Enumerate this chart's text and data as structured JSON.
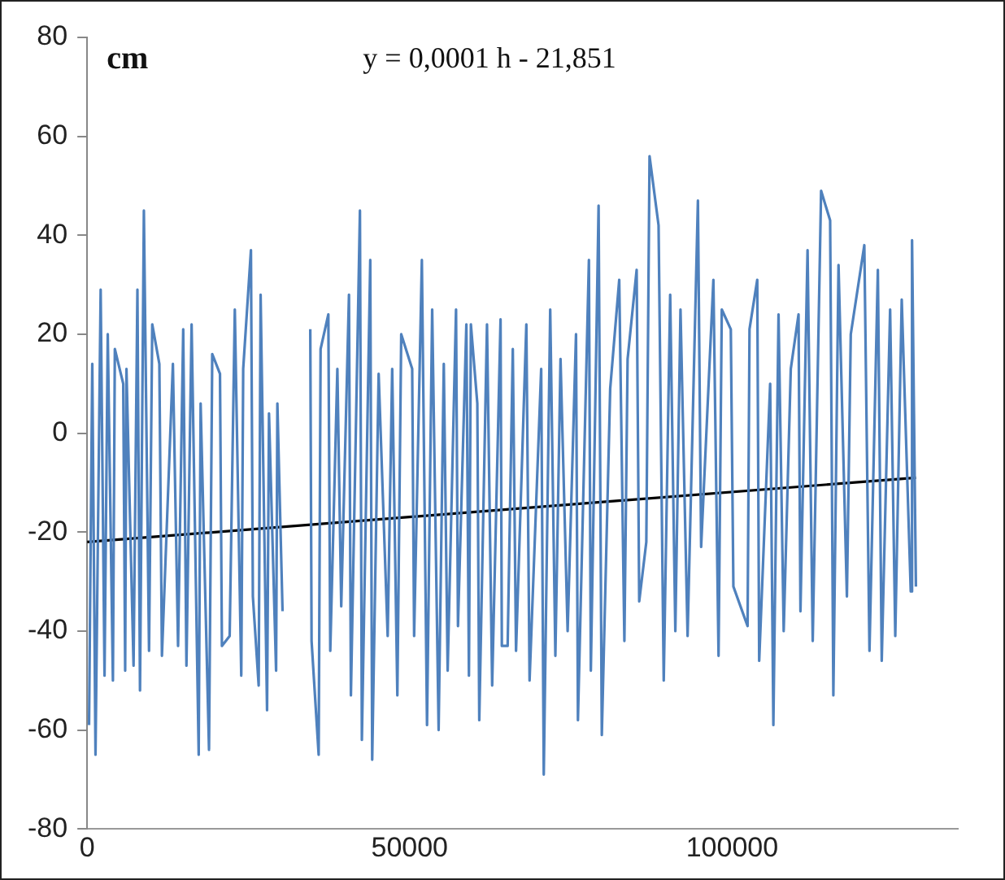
{
  "chart_data": {
    "type": "line",
    "ylabel": "cm",
    "annotations": [
      "y = 0,0001 h - 21,851"
    ],
    "xlim": [
      0,
      135000
    ],
    "xticks": [
      0,
      50000,
      100000
    ],
    "ylim": [
      -80,
      80
    ],
    "yticks": [
      -80,
      -60,
      -40,
      -20,
      0,
      20,
      40,
      60,
      80
    ],
    "legend": false,
    "marker": "none",
    "series": [
      {
        "color": "#4f81bd",
        "x": [
          300,
          800,
          1300,
          2100,
          2700,
          3200,
          4000,
          4300,
          5600,
          5900,
          6100,
          7200,
          7800,
          8200,
          8800,
          9600,
          10100,
          11200,
          11600,
          13300,
          14100,
          14900,
          15400,
          16200,
          17300,
          17600,
          18900,
          19400,
          20600,
          20900,
          22100,
          22900,
          23900,
          24200,
          25400,
          25700,
          26600,
          26900,
          27900,
          28200,
          29300,
          29500,
          30300,
          32000,
          34600,
          34800,
          35900,
          36200,
          37400,
          37700,
          38800,
          39400,
          40600,
          40900,
          42300,
          42600,
          43900,
          44200,
          45200,
          46600,
          47300,
          48100,
          48700,
          50400,
          50700,
          51900,
          52700,
          53500,
          54500,
          55300,
          55900,
          57200,
          57500,
          58800,
          59200,
          59500,
          60500,
          60800,
          62000,
          62800,
          64100,
          64300,
          65200,
          66000,
          66500,
          68100,
          68600,
          70400,
          70800,
          71800,
          72600,
          73400,
          74500,
          75800,
          76100,
          77800,
          78100,
          79300,
          79800,
          81100,
          82500,
          83300,
          83800,
          85200,
          85600,
          86700,
          87200,
          88600,
          89400,
          90400,
          91200,
          92000,
          93100,
          94700,
          95200,
          97100,
          97900,
          98400,
          99800,
          100200,
          102400,
          102700,
          103900,
          104200,
          105900,
          106400,
          107200,
          108000,
          109100,
          110300,
          110600,
          111700,
          112500,
          113800,
          115200,
          115700,
          116500,
          117800,
          118400,
          120500,
          121300,
          122600,
          123200,
          124500,
          125300,
          126300,
          127700,
          127900,
          128500
        ],
        "values": [
          -59,
          14,
          -65,
          29,
          -49,
          20,
          -50,
          17,
          10,
          -48,
          13,
          -47,
          29,
          -52,
          45,
          -44,
          22,
          14,
          -45,
          14,
          -43,
          21,
          -47,
          22,
          -65,
          6,
          -64,
          16,
          12,
          -43,
          -41,
          25,
          -49,
          13,
          37,
          -33,
          -51,
          28,
          -56,
          4,
          -48,
          6,
          -36,
          null,
          21,
          -42,
          -65,
          17,
          24,
          -44,
          13,
          -35,
          28,
          -53,
          45,
          -62,
          35,
          -66,
          12,
          -41,
          13,
          -53,
          20,
          13,
          -41,
          35,
          -59,
          25,
          -60,
          14,
          -48,
          25,
          -39,
          22,
          -49,
          22,
          6,
          -58,
          22,
          -51,
          23,
          -43,
          -43,
          17,
          -44,
          22,
          -50,
          13,
          -69,
          25,
          -45,
          15,
          -40,
          20,
          -58,
          35,
          -48,
          46,
          -61,
          9,
          31,
          -42,
          15,
          33,
          -34,
          -22,
          56,
          42,
          -50,
          28,
          -40,
          25,
          -41,
          47,
          -23,
          31,
          -45,
          25,
          21,
          -31,
          -39,
          21,
          31,
          -46,
          10,
          -59,
          24,
          -40,
          13,
          24,
          -36,
          37,
          -42,
          49,
          43,
          -53,
          34,
          -33,
          20,
          38,
          -44,
          33,
          -46,
          25,
          -41,
          27,
          -32,
          39,
          -31
        ]
      },
      {
        "color": "#000000",
        "x": [
          0,
          128500
        ],
        "values": [
          -22,
          -9
        ]
      }
    ]
  }
}
